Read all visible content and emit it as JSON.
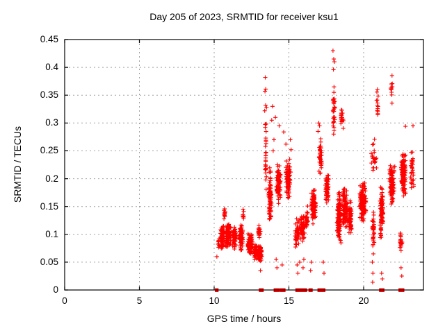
{
  "chart_data": {
    "type": "scatter",
    "title": "Day 205 of 2023, SRMTID for receiver ksu1",
    "xlabel": "GPS time / hours",
    "ylabel": "SRMTID / TECUs",
    "xlim": [
      0,
      24
    ],
    "ylim": [
      0,
      0.45
    ],
    "xticks": [
      0,
      5,
      10,
      15,
      20
    ],
    "xtick_labels": [
      "0",
      "5",
      "10",
      "15",
      "20"
    ],
    "yticks": [
      0,
      0.05,
      0.1,
      0.15,
      0.2,
      0.25,
      0.3,
      0.35,
      0.4,
      0.45
    ],
    "ytick_labels": [
      "0",
      "0.05",
      "0.1",
      "0.15",
      "0.2",
      "0.25",
      "0.3",
      "0.35",
      "0.4",
      "0.45"
    ],
    "grid": true,
    "legend": "none",
    "marker": "plus",
    "marker_color": "#ff0000",
    "grid_color": "#a0a0a0",
    "axis_color": "#000000",
    "series_name": "SRMTID",
    "clusters_note": "dense scatter approximated as clusters: [center_x, x_spread, center_y, y_spread, n_points]",
    "clusters": [
      [
        10.3,
        0.08,
        0.085,
        0.012,
        10
      ],
      [
        10.55,
        0.14,
        0.095,
        0.022,
        85
      ],
      [
        10.7,
        0.05,
        0.14,
        0.018,
        12
      ],
      [
        10.95,
        0.2,
        0.1,
        0.026,
        95
      ],
      [
        11.35,
        0.15,
        0.095,
        0.022,
        65
      ],
      [
        11.8,
        0.15,
        0.095,
        0.024,
        70
      ],
      [
        11.95,
        0.04,
        0.135,
        0.012,
        8
      ],
      [
        12.4,
        0.18,
        0.082,
        0.02,
        110
      ],
      [
        12.75,
        0.1,
        0.07,
        0.016,
        45
      ],
      [
        13.05,
        0.14,
        0.065,
        0.016,
        100
      ],
      [
        13.0,
        0.12,
        0.105,
        0.015,
        25
      ],
      [
        13.45,
        0.06,
        0.24,
        0.075,
        30
      ],
      [
        13.75,
        0.13,
        0.17,
        0.055,
        85
      ],
      [
        14.3,
        0.16,
        0.19,
        0.038,
        90
      ],
      [
        14.95,
        0.18,
        0.2,
        0.038,
        80
      ],
      [
        15.55,
        0.15,
        0.1,
        0.03,
        45
      ],
      [
        15.9,
        0.22,
        0.11,
        0.028,
        60
      ],
      [
        16.2,
        0.1,
        0.13,
        0.025,
        25
      ],
      [
        16.65,
        0.18,
        0.15,
        0.032,
        80
      ],
      [
        17.1,
        0.1,
        0.24,
        0.038,
        40
      ],
      [
        17.55,
        0.13,
        0.18,
        0.032,
        60
      ],
      [
        18.0,
        0.09,
        0.32,
        0.045,
        32
      ],
      [
        18.35,
        0.16,
        0.13,
        0.048,
        130
      ],
      [
        18.75,
        0.2,
        0.15,
        0.042,
        110
      ],
      [
        19.1,
        0.13,
        0.13,
        0.035,
        60
      ],
      [
        18.55,
        0.1,
        0.31,
        0.022,
        18
      ],
      [
        19.95,
        0.23,
        0.16,
        0.04,
        130
      ],
      [
        20.65,
        0.1,
        0.1,
        0.05,
        35
      ],
      [
        20.7,
        0.2,
        0.24,
        0.038,
        25
      ],
      [
        20.92,
        0.07,
        0.34,
        0.038,
        14
      ],
      [
        21.2,
        0.14,
        0.14,
        0.052,
        90
      ],
      [
        21.9,
        0.2,
        0.19,
        0.038,
        95
      ],
      [
        21.85,
        0.08,
        0.36,
        0.03,
        12
      ],
      [
        22.65,
        0.19,
        0.21,
        0.042,
        130
      ],
      [
        22.5,
        0.09,
        0.085,
        0.022,
        25
      ],
      [
        23.25,
        0.11,
        0.22,
        0.042,
        30
      ]
    ],
    "points": [
      [
        13.42,
        0.382
      ],
      [
        13.45,
        0.361
      ],
      [
        13.4,
        0.357
      ],
      [
        13.44,
        0.332
      ],
      [
        13.5,
        0.328
      ],
      [
        13.38,
        0.322
      ],
      [
        13.9,
        0.33
      ],
      [
        13.85,
        0.305
      ],
      [
        14.0,
        0.27
      ],
      [
        13.95,
        0.25
      ],
      [
        14.1,
        0.31
      ],
      [
        14.35,
        0.295
      ],
      [
        14.65,
        0.284
      ],
      [
        14.8,
        0.262
      ],
      [
        15.1,
        0.27
      ],
      [
        15.15,
        0.252
      ],
      [
        16.95,
        0.285
      ],
      [
        17.0,
        0.3
      ],
      [
        17.05,
        0.295
      ],
      [
        17.95,
        0.43
      ],
      [
        18.0,
        0.415
      ],
      [
        18.04,
        0.41
      ],
      [
        17.98,
        0.396
      ],
      [
        18.02,
        0.365
      ],
      [
        20.6,
        0.014
      ],
      [
        20.62,
        0.03
      ],
      [
        20.58,
        0.05
      ],
      [
        22.8,
        0.294
      ],
      [
        23.3,
        0.295
      ],
      [
        23.35,
        0.19
      ],
      [
        15.55,
        0.045
      ],
      [
        15.6,
        0.03
      ],
      [
        15.72,
        0.05
      ],
      [
        15.95,
        0.04
      ],
      [
        16.0,
        0.055
      ],
      [
        16.45,
        0.035
      ],
      [
        16.5,
        0.05
      ],
      [
        13.1,
        0.035
      ],
      [
        14.15,
        0.055
      ],
      [
        14.2,
        0.04
      ],
      [
        14.55,
        0.045
      ],
      [
        17.3,
        0.05
      ],
      [
        17.35,
        0.03
      ],
      [
        21.2,
        0.03
      ],
      [
        21.25,
        0.02
      ],
      [
        22.5,
        0.04
      ],
      [
        22.55,
        0.025
      ],
      [
        10.18,
        0.06
      ]
    ],
    "zero_line_segments": [
      [
        10.12,
        10.22
      ],
      [
        13.06,
        13.1
      ],
      [
        13.2,
        13.24
      ],
      [
        14.05,
        14.3
      ],
      [
        14.45,
        14.7
      ],
      [
        15.5,
        15.78
      ],
      [
        15.88,
        16.15
      ],
      [
        16.38,
        16.42
      ],
      [
        16.48,
        16.52
      ],
      [
        16.98,
        17.22
      ],
      [
        17.33,
        17.37
      ],
      [
        21.1,
        21.32
      ],
      [
        22.4,
        22.65
      ]
    ]
  }
}
